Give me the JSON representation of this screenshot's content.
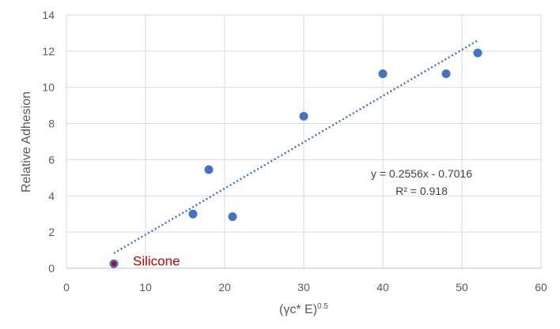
{
  "chart_data": {
    "type": "scatter",
    "title": "",
    "xlabel_main": "(γc* E)",
    "xlabel_sup": "0.5",
    "ylabel": "Relative Adhesion",
    "xlim": [
      0,
      60
    ],
    "ylim": [
      0,
      14
    ],
    "xticks": [
      0,
      10,
      20,
      30,
      40,
      50,
      60
    ],
    "yticks": [
      0,
      2,
      4,
      6,
      8,
      10,
      12,
      14
    ],
    "grid": true,
    "series": [
      {
        "name": "Relative Adhesion",
        "color": "#4472C4",
        "points": [
          {
            "x": 6,
            "y": 0.25
          },
          {
            "x": 16,
            "y": 3.0
          },
          {
            "x": 18,
            "y": 5.45
          },
          {
            "x": 21,
            "y": 2.85
          },
          {
            "x": 30,
            "y": 8.4
          },
          {
            "x": 40,
            "y": 10.75
          },
          {
            "x": 48,
            "y": 10.75
          },
          {
            "x": 52,
            "y": 11.9
          }
        ]
      }
    ],
    "highlight": {
      "x": 6,
      "y": 0.25,
      "label": "Silicone",
      "color": "#C00000"
    },
    "trendline": {
      "type": "linear",
      "slope": 0.2556,
      "intercept": -0.7016,
      "x_range": [
        6,
        52
      ],
      "color": "#4472C4",
      "equation_text": "y = 0.2556x - 0.7016",
      "r2_text": "R² = 0.918"
    }
  }
}
